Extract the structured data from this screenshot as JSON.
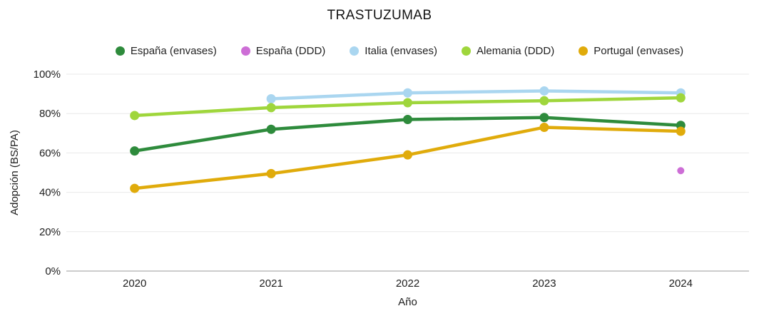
{
  "title": "TRASTUZUMAB",
  "axes": {
    "xlabel": "Año",
    "ylabel": "Adopción (BS/PA)"
  },
  "chart_data": {
    "type": "line",
    "title": "TRASTUZUMAB",
    "x": [
      "2020",
      "2021",
      "2022",
      "2023",
      "2024"
    ],
    "xlabel": "Año",
    "ylabel": "Adopción (BS/PA)",
    "ylim": [
      0,
      100
    ],
    "yticks": [
      0,
      20,
      40,
      60,
      80,
      100
    ],
    "ytick_labels": [
      "0%",
      "20%",
      "40%",
      "60%",
      "80%",
      "100%"
    ],
    "grid": true,
    "legend_position": "top",
    "series": [
      {
        "name": "España (envases)",
        "color": "#2e8b3c",
        "values": [
          61,
          72,
          77,
          78,
          74
        ],
        "marker_only": false
      },
      {
        "name": "España (DDD)",
        "color": "#cd6ed6",
        "values": [
          null,
          null,
          null,
          null,
          51
        ],
        "marker_only": true
      },
      {
        "name": "Italia (envases)",
        "color": "#aad6f0",
        "values": [
          null,
          87.5,
          90.5,
          91.5,
          90.5
        ],
        "marker_only": false
      },
      {
        "name": "Alemania (DDD)",
        "color": "#9fd63c",
        "values": [
          79,
          83,
          85.5,
          86.5,
          88
        ],
        "marker_only": false
      },
      {
        "name": "Portugal (envases)",
        "color": "#e0ab0b",
        "values": [
          42,
          49.5,
          59,
          73,
          71
        ],
        "marker_only": false
      }
    ],
    "colors": {
      "gridline": "#e9e9e9",
      "axis_line": "#9a9a9a",
      "tick_label": "#202020",
      "axis_title": "#202020"
    }
  }
}
